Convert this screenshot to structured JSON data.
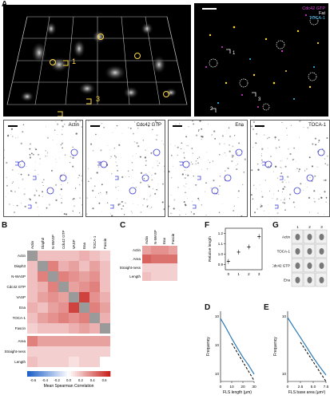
{
  "panels": {
    "A": "A",
    "B": "B",
    "C": "C",
    "D": "D",
    "E": "E",
    "F": "F",
    "G": "G"
  },
  "panelA": {
    "roi_labels": [
      "1",
      "2",
      "3"
    ],
    "legend": [
      "Cdc42 GTP",
      "Fat",
      "TOCA-1"
    ],
    "legend_colors": [
      "#e040e0",
      "#ffffff",
      "#40c8ff"
    ],
    "thumbs": [
      {
        "title": "Actin"
      },
      {
        "title": "Cdc42 GTP"
      },
      {
        "title": "Ena"
      },
      {
        "title": "TOCA-1"
      }
    ]
  },
  "panelB": {
    "labels": [
      "Actin",
      "Diaph3",
      "N-WASP",
      "Cdc42 GTP",
      "VASP",
      "Ena",
      "TOCA-1",
      "Fascin"
    ],
    "extra_rows": [
      "Area",
      "Straight-ness",
      "Length"
    ],
    "colorbar_ticks": [
      "-0.6",
      "-0.4",
      "-0.2",
      "0.0",
      "0.2",
      "0.4",
      "0.6"
    ],
    "colorbar_label": "Mean Spearman Correlation"
  },
  "panelC": {
    "cols": [
      "Actin",
      "N-WASP",
      "Ena",
      "Fascin"
    ],
    "rows": [
      "Actin",
      "Area",
      "Straight-ness",
      "Length"
    ]
  },
  "panelF": {
    "ylabel": "Relative length",
    "yticks": [
      "1.2",
      "1.1",
      "1.0",
      "0.9"
    ],
    "xticks": [
      "0",
      "1",
      "2",
      "3"
    ]
  },
  "panelG": {
    "cols": [
      "1",
      "2",
      "3"
    ],
    "rows": [
      "Actin",
      "TOCA-1",
      "Cdc42 GTP",
      "Ena"
    ]
  },
  "panelD": {
    "ylabel": "Frequency",
    "xlabel": "FLS length (µm)",
    "xticks": [
      "0",
      "10",
      "20",
      "30"
    ],
    "yticks": [
      "10",
      "10",
      "10"
    ]
  },
  "panelE": {
    "ylabel": "Frequency",
    "xlabel": "FLS base area (µm²)",
    "xticks": [
      "0",
      "2.5",
      "5.0",
      "7.5"
    ],
    "yticks": [
      "10",
      "10"
    ]
  },
  "chart_data": [
    {
      "type": "heatmap",
      "title": "",
      "rows": [
        "Actin",
        "Diaph3",
        "N-WASP",
        "Cdc42 GTP",
        "VASP",
        "Ena",
        "TOCA-1",
        "Fascin"
      ],
      "columns": [
        "Actin",
        "Diaph3",
        "N-WASP",
        "Cdc42 GTP",
        "VASP",
        "Ena",
        "TOCA-1",
        "Fascin"
      ],
      "values": [
        [
          null,
          0.2,
          0.2,
          0.2,
          0.2,
          0.25,
          0.2,
          0.15
        ],
        [
          0.2,
          null,
          0.4,
          0.25,
          0.3,
          0.2,
          0.3,
          0.2
        ],
        [
          0.2,
          0.4,
          null,
          0.4,
          0.35,
          0.3,
          0.35,
          0.2
        ],
        [
          0.2,
          0.25,
          0.4,
          null,
          0.3,
          0.35,
          0.4,
          0.2
        ],
        [
          0.2,
          0.3,
          0.35,
          0.3,
          null,
          0.6,
          0.35,
          0.25
        ],
        [
          0.25,
          0.2,
          0.3,
          0.35,
          0.6,
          null,
          0.4,
          0.3
        ],
        [
          0.2,
          0.3,
          0.35,
          0.4,
          0.35,
          0.4,
          null,
          0.25
        ],
        [
          0.15,
          0.2,
          0.2,
          0.2,
          0.25,
          0.3,
          0.25,
          null
        ]
      ],
      "extra_rows": [
        "Area",
        "Straight-ness",
        "Length"
      ],
      "extra_values": [
        [
          0.4,
          0.3,
          0.3,
          0.3,
          0.3,
          0.3,
          0.3,
          0.3
        ],
        [
          0.15,
          0.15,
          0.15,
          0.15,
          0.15,
          0.15,
          0.15,
          0.15
        ],
        [
          0.2,
          0.15,
          0.15,
          0.15,
          0.1,
          0.15,
          0.15,
          0.0
        ]
      ],
      "vmin": -0.7,
      "vmax": 0.7
    },
    {
      "type": "heatmap",
      "rows": [
        "Actin",
        "Area",
        "Straight-ness",
        "Length"
      ],
      "columns": [
        "Actin",
        "N-WASP",
        "Ena",
        "Fascin"
      ],
      "values": [
        [
          0.3,
          0.35,
          0.35,
          0.3
        ],
        [
          0.5,
          0.45,
          0.45,
          0.45
        ],
        [
          0.15,
          0.15,
          0.15,
          0.15
        ],
        [
          0.2,
          0.15,
          0.15,
          0.15
        ]
      ],
      "vmin": -0.7,
      "vmax": 0.7
    },
    {
      "type": "scatter",
      "xlabel": "",
      "ylabel": "Relative length",
      "x": [
        0,
        1,
        2,
        3
      ],
      "y": [
        0.93,
        1.02,
        1.07,
        1.17
      ],
      "ylim": [
        0.85,
        1.25
      ],
      "xlim": [
        -0.3,
        3.3
      ]
    },
    {
      "type": "line",
      "xlabel": "FLS length (µm)",
      "ylabel": "Frequency",
      "x": [
        0,
        5,
        10,
        15,
        20,
        25,
        30
      ],
      "y": [
        0.1,
        0.04,
        0.015,
        0.006,
        0.0025,
        0.0012,
        0.0005
      ],
      "xlim": [
        0,
        30
      ],
      "log_y": true
    },
    {
      "type": "line",
      "xlabel": "FLS base area (µm²)",
      "ylabel": "Frequency",
      "x": [
        0,
        1.25,
        2.5,
        3.75,
        5.0,
        6.25,
        7.5
      ],
      "y": [
        0.3,
        0.1,
        0.035,
        0.012,
        0.004,
        0.0015,
        0.0006
      ],
      "xlim": [
        0,
        7.5
      ],
      "log_y": true
    }
  ]
}
